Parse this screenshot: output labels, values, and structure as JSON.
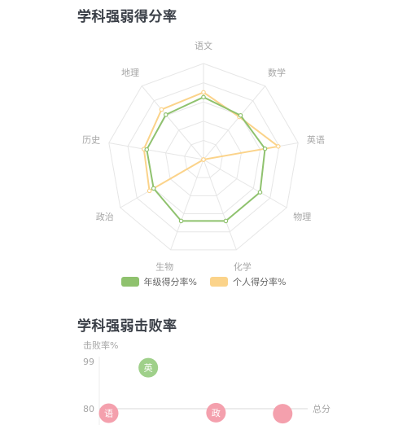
{
  "sections": {
    "radar_title": "学科强弱得分率",
    "defeat_title": "学科强弱击败率"
  },
  "colors": {
    "grade": "#8fc26e",
    "personal": "#fbd38a",
    "bubble_green": "#9fd08a",
    "bubble_pink": "#f4a0ad",
    "grid": "#e6e6e6",
    "axis_text": "#a6a6a6"
  },
  "chart_data": [
    {
      "type": "radar",
      "title": "学科强弱得分率",
      "axes": [
        "语文",
        "数学",
        "英语",
        "物理",
        "化学",
        "生物",
        "政治",
        "历史",
        "地理"
      ],
      "max": 100,
      "rings": 5,
      "legend_position": "bottom",
      "series": [
        {
          "name": "年级得分率%",
          "values": [
            65,
            60,
            65,
            68,
            68,
            68,
            60,
            60,
            61
          ]
        },
        {
          "name": "个人得分率%",
          "values": [
            70,
            58,
            79,
            0,
            0,
            0,
            65,
            63,
            68
          ]
        }
      ]
    },
    {
      "type": "scatter",
      "title": "学科强弱击败率",
      "ylabel": "击败率%",
      "xlabel": "总分",
      "yticks": [
        99,
        80
      ],
      "points": [
        {
          "label": "英",
          "y": 96.5,
          "x_frac": 0.235,
          "color": "bubble_green"
        },
        {
          "label": "语",
          "y": 78.2,
          "x_frac": 0.045,
          "color": "bubble_pink"
        },
        {
          "label": "政",
          "y": 78.4,
          "x_frac": 0.56,
          "color": "bubble_pink"
        },
        {
          "label": "",
          "y": 78.0,
          "x_frac": 0.88,
          "color": "bubble_pink"
        }
      ]
    }
  ]
}
